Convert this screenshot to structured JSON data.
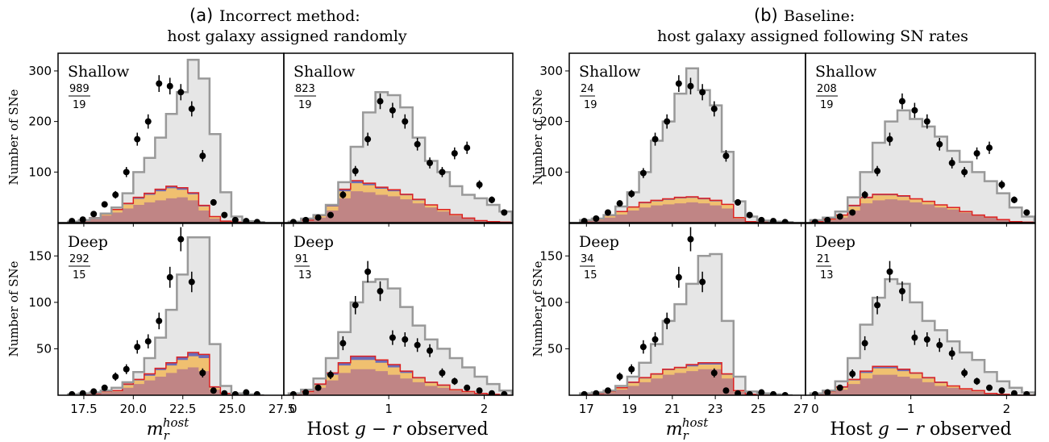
{
  "figure": {
    "groups": [
      {
        "tag": "(a)",
        "line1": "Incorrect method:",
        "line2": "host galaxy assigned randomly"
      },
      {
        "tag": "(b)",
        "line1": "Baseline:",
        "line2": "host galaxy assigned following SN rates"
      }
    ],
    "ylabel": "Number of SNe",
    "colors": {
      "model_line": "#999999",
      "model_fill": "#e6e6e6",
      "red": "#dd2222",
      "blue": "#6b6bb8",
      "orange": "#f0c070",
      "pink": "#c08585",
      "data": "#000000"
    }
  },
  "chart_data": [
    {
      "id": "a_shallow_m",
      "type": "histogram",
      "label": "Shallow",
      "frac_num": "989",
      "frac_den": "19",
      "x": [
        16.7,
        17.25,
        17.8,
        18.35,
        18.9,
        19.45,
        20.0,
        20.55,
        21.1,
        21.65,
        22.2,
        22.75,
        23.3,
        23.85,
        24.4,
        24.95,
        25.5,
        26.05
      ],
      "model": [
        2,
        5,
        9,
        18,
        30,
        58,
        100,
        128,
        168,
        215,
        258,
        322,
        285,
        175,
        60,
        12,
        3,
        1
      ],
      "stack_pink": [
        2,
        4,
        8,
        14,
        20,
        28,
        35,
        40,
        44,
        48,
        50,
        44,
        24,
        8,
        2,
        1,
        1,
        1
      ],
      "stack_orange": [
        0,
        1,
        2,
        3,
        5,
        8,
        12,
        15,
        18,
        20,
        15,
        12,
        8,
        3,
        1,
        0,
        0,
        0
      ],
      "stack_blue": [
        0,
        0,
        0,
        0,
        1,
        2,
        3,
        3,
        4,
        4,
        4,
        3,
        2,
        1,
        0,
        0,
        0,
        0
      ],
      "points_x": [
        16.9,
        17.45,
        18.0,
        18.55,
        19.1,
        19.65,
        20.2,
        20.75,
        21.3,
        21.85,
        22.4,
        22.95,
        23.5,
        24.05,
        24.6,
        25.15,
        25.7,
        26.25
      ],
      "points_y": [
        3,
        6,
        17,
        36,
        55,
        100,
        165,
        200,
        275,
        270,
        258,
        225,
        132,
        40,
        15,
        5,
        3,
        1
      ],
      "xlim": [
        16.2,
        27.6
      ],
      "ylim": [
        0,
        335
      ],
      "xticks": [
        17.5,
        20.0,
        22.5,
        25.0,
        27.5
      ],
      "xticklabels": [
        "17.5",
        "20.0",
        "22.5",
        "25.0",
        "27.5"
      ],
      "yticks": [
        100,
        200,
        300
      ]
    },
    {
      "id": "a_shallow_gr",
      "type": "histogram",
      "label": "Shallow",
      "frac_num": "823",
      "frac_den": "19",
      "x": [
        -0.05,
        0.08,
        0.21,
        0.34,
        0.47,
        0.6,
        0.73,
        0.86,
        0.99,
        1.12,
        1.25,
        1.38,
        1.51,
        1.64,
        1.77,
        1.9,
        2.03,
        2.16
      ],
      "model": [
        2,
        8,
        15,
        35,
        80,
        150,
        218,
        258,
        252,
        228,
        168,
        122,
        100,
        72,
        55,
        48,
        35,
        22
      ],
      "stack_pink": [
        1,
        4,
        10,
        24,
        48,
        62,
        60,
        55,
        52,
        46,
        38,
        30,
        22,
        14,
        8,
        4,
        2,
        1
      ],
      "stack_orange": [
        0,
        1,
        3,
        8,
        14,
        16,
        14,
        12,
        10,
        8,
        6,
        4,
        3,
        2,
        1,
        0,
        0,
        0
      ],
      "stack_blue": [
        0,
        0,
        1,
        2,
        4,
        5,
        4,
        3,
        3,
        2,
        2,
        1,
        1,
        0,
        0,
        0,
        0,
        0
      ],
      "points_x": [
        0.0,
        0.13,
        0.26,
        0.39,
        0.52,
        0.65,
        0.78,
        0.91,
        1.04,
        1.17,
        1.3,
        1.43,
        1.56,
        1.69,
        1.82,
        1.95,
        2.08,
        2.21
      ],
      "points_y": [
        1,
        5,
        10,
        15,
        55,
        102,
        165,
        240,
        222,
        200,
        155,
        118,
        100,
        137,
        148,
        75,
        45,
        20
      ],
      "xlim": [
        -0.1,
        2.3
      ],
      "ylim": [
        0,
        335
      ],
      "xticks": [
        0,
        1,
        2
      ],
      "xticklabels": [
        "0",
        "1",
        "2"
      ],
      "yticks": [
        100,
        200,
        300
      ]
    },
    {
      "id": "b_shallow_m",
      "type": "histogram",
      "label": "Shallow",
      "frac_num": "24",
      "frac_den": "19",
      "x": [
        16.7,
        17.25,
        17.8,
        18.35,
        18.9,
        19.45,
        20.0,
        20.55,
        21.1,
        21.65,
        22.2,
        22.75,
        23.3,
        23.85,
        24.4,
        24.95,
        25.5,
        26.05
      ],
      "model": [
        5,
        8,
        15,
        32,
        60,
        100,
        162,
        200,
        255,
        305,
        262,
        232,
        140,
        42,
        12,
        4,
        2,
        1
      ],
      "stack_pink": [
        3,
        5,
        10,
        16,
        24,
        30,
        34,
        36,
        38,
        40,
        38,
        34,
        28,
        8,
        2,
        1,
        1,
        1
      ],
      "stack_orange": [
        1,
        2,
        3,
        5,
        6,
        8,
        8,
        9,
        10,
        9,
        8,
        8,
        7,
        2,
        0,
        0,
        0,
        0
      ],
      "stack_blue": [
        0,
        0,
        1,
        1,
        1,
        2,
        2,
        2,
        2,
        2,
        2,
        2,
        1,
        0,
        0,
        0,
        0,
        0
      ],
      "points_x": [
        16.9,
        17.45,
        18.0,
        18.55,
        19.1,
        19.65,
        20.2,
        20.75,
        21.3,
        21.85,
        22.4,
        22.95,
        23.5,
        24.05,
        24.6,
        25.15,
        25.7,
        26.25
      ],
      "points_y": [
        3,
        8,
        20,
        38,
        57,
        98,
        165,
        200,
        275,
        270,
        258,
        225,
        132,
        40,
        15,
        5,
        3,
        1
      ],
      "xlim": [
        16.2,
        27.2
      ],
      "ylim": [
        0,
        335
      ],
      "xticks": [
        17,
        19,
        21,
        23,
        25,
        27
      ],
      "xticklabels": [
        "17",
        "19",
        "21",
        "23",
        "25",
        "27"
      ],
      "yticks": [
        100,
        200,
        300
      ]
    },
    {
      "id": "b_shallow_gr",
      "type": "histogram",
      "label": "Shallow",
      "frac_num": "208",
      "frac_den": "19",
      "x": [
        -0.05,
        0.08,
        0.21,
        0.34,
        0.47,
        0.6,
        0.73,
        0.86,
        0.99,
        1.12,
        1.25,
        1.38,
        1.51,
        1.64,
        1.77,
        1.9,
        2.03,
        2.16
      ],
      "model": [
        5,
        10,
        22,
        50,
        100,
        158,
        200,
        222,
        205,
        190,
        170,
        142,
        120,
        100,
        82,
        58,
        30,
        12
      ],
      "stack_pink": [
        2,
        5,
        10,
        24,
        38,
        44,
        46,
        44,
        40,
        36,
        30,
        26,
        20,
        14,
        10,
        6,
        2,
        1
      ],
      "stack_orange": [
        0,
        2,
        4,
        8,
        10,
        10,
        8,
        7,
        6,
        5,
        4,
        3,
        2,
        1,
        1,
        0,
        0,
        0
      ],
      "stack_blue": [
        0,
        0,
        1,
        2,
        2,
        2,
        2,
        2,
        1,
        1,
        1,
        1,
        0,
        0,
        0,
        0,
        0,
        0
      ],
      "points_x": [
        0.0,
        0.13,
        0.26,
        0.39,
        0.52,
        0.65,
        0.78,
        0.91,
        1.04,
        1.17,
        1.3,
        1.43,
        1.56,
        1.69,
        1.82,
        1.95,
        2.08,
        2.21
      ],
      "points_y": [
        1,
        5,
        12,
        20,
        55,
        102,
        165,
        240,
        222,
        200,
        155,
        118,
        100,
        137,
        148,
        75,
        45,
        20
      ],
      "xlim": [
        -0.1,
        2.3
      ],
      "ylim": [
        0,
        335
      ],
      "xticks": [
        0,
        1,
        2
      ],
      "xticklabels": [
        "0",
        "1",
        "2"
      ],
      "yticks": [
        100,
        200,
        300
      ]
    },
    {
      "id": "a_deep_m",
      "type": "histogram",
      "label": "Deep",
      "frac_num": "292",
      "frac_den": "15",
      "x": [
        16.7,
        17.25,
        17.8,
        18.35,
        18.9,
        19.45,
        20.0,
        20.55,
        21.1,
        21.65,
        22.2,
        22.75,
        23.3,
        23.85,
        24.4,
        24.95,
        25.5,
        26.05
      ],
      "model": [
        1,
        2,
        3,
        5,
        8,
        14,
        25,
        40,
        62,
        92,
        130,
        170,
        170,
        55,
        10,
        2,
        1,
        0
      ],
      "stack_pink": [
        0,
        1,
        2,
        3,
        4,
        8,
        12,
        16,
        20,
        24,
        28,
        30,
        26,
        6,
        2,
        0,
        0,
        0
      ],
      "stack_orange": [
        0,
        0,
        0,
        1,
        1,
        3,
        4,
        5,
        7,
        8,
        10,
        12,
        14,
        2,
        0,
        0,
        0,
        0
      ],
      "stack_blue": [
        0,
        0,
        0,
        0,
        0,
        1,
        1,
        2,
        2,
        3,
        3,
        4,
        4,
        1,
        0,
        0,
        0,
        0
      ],
      "points_x": [
        16.9,
        17.45,
        18.0,
        18.55,
        19.1,
        19.65,
        20.2,
        20.75,
        21.3,
        21.85,
        22.4,
        22.95,
        23.5,
        24.05,
        24.6,
        25.15,
        25.7,
        26.25
      ],
      "points_y": [
        1,
        2,
        4,
        8,
        20,
        28,
        52,
        58,
        80,
        127,
        168,
        122,
        24,
        5,
        2,
        1,
        3,
        1
      ],
      "xlim": [
        16.2,
        27.6
      ],
      "ylim": [
        0,
        185
      ],
      "xticks": [
        17.5,
        20.0,
        22.5,
        25.0,
        27.5
      ],
      "xticklabels": [
        "17.5",
        "20.0",
        "22.5",
        "25.0",
        "27.5"
      ],
      "yticks": [
        50,
        100,
        150
      ]
    },
    {
      "id": "a_deep_gr",
      "type": "histogram",
      "label": "Deep",
      "frac_num": "91",
      "frac_den": "13",
      "x": [
        -0.05,
        0.08,
        0.21,
        0.34,
        0.47,
        0.6,
        0.73,
        0.86,
        0.99,
        1.12,
        1.25,
        1.38,
        1.51,
        1.64,
        1.77,
        1.9,
        2.03,
        2.16
      ],
      "model": [
        2,
        6,
        18,
        40,
        68,
        100,
        122,
        125,
        115,
        95,
        75,
        60,
        50,
        40,
        30,
        20,
        12,
        5
      ],
      "stack_pink": [
        1,
        3,
        8,
        16,
        24,
        28,
        28,
        26,
        22,
        18,
        14,
        10,
        8,
        5,
        3,
        2,
        1,
        0
      ],
      "stack_orange": [
        0,
        1,
        3,
        6,
        8,
        10,
        10,
        9,
        8,
        6,
        4,
        3,
        2,
        1,
        1,
        0,
        0,
        0
      ],
      "stack_blue": [
        0,
        0,
        1,
        2,
        3,
        4,
        4,
        3,
        3,
        2,
        1,
        1,
        1,
        0,
        0,
        0,
        0,
        0
      ],
      "points_x": [
        0.0,
        0.13,
        0.26,
        0.39,
        0.52,
        0.65,
        0.78,
        0.91,
        1.04,
        1.17,
        1.3,
        1.43,
        1.56,
        1.69,
        1.82,
        1.95,
        2.08,
        2.21
      ],
      "points_y": [
        1,
        3,
        8,
        22,
        56,
        97,
        133,
        112,
        62,
        60,
        54,
        48,
        24,
        15,
        8,
        5,
        2,
        1
      ],
      "xlim": [
        -0.1,
        2.3
      ],
      "ylim": [
        0,
        185
      ],
      "xticks": [
        0,
        1,
        2
      ],
      "xticklabels": [
        "0",
        "1",
        "2"
      ],
      "yticks": [
        50,
        100,
        150
      ]
    },
    {
      "id": "b_deep_m",
      "type": "histogram",
      "label": "Deep",
      "frac_num": "34",
      "frac_den": "15",
      "x": [
        16.7,
        17.25,
        17.8,
        18.35,
        18.9,
        19.45,
        20.0,
        20.55,
        21.1,
        21.65,
        22.2,
        22.75,
        23.3,
        23.85,
        24.4,
        24.95,
        25.5,
        26.05
      ],
      "model": [
        2,
        3,
        5,
        10,
        20,
        35,
        55,
        80,
        98,
        120,
        150,
        152,
        80,
        20,
        4,
        2,
        1,
        0
      ],
      "stack_pink": [
        1,
        2,
        3,
        6,
        10,
        14,
        18,
        22,
        24,
        26,
        28,
        28,
        18,
        4,
        1,
        0,
        0,
        0
      ],
      "stack_orange": [
        0,
        0,
        1,
        2,
        3,
        4,
        4,
        5,
        5,
        5,
        5,
        5,
        4,
        1,
        0,
        0,
        0,
        0
      ],
      "stack_blue": [
        0,
        0,
        0,
        0,
        1,
        1,
        1,
        1,
        1,
        2,
        2,
        2,
        1,
        0,
        0,
        0,
        0,
        0
      ],
      "points_x": [
        16.9,
        17.45,
        18.0,
        18.55,
        19.1,
        19.65,
        20.2,
        20.75,
        21.3,
        21.85,
        22.4,
        22.95,
        23.5,
        24.05,
        24.6,
        25.15,
        25.7,
        26.25
      ],
      "points_y": [
        1,
        2,
        5,
        20,
        28,
        52,
        60,
        80,
        127,
        168,
        122,
        24,
        5,
        2,
        1,
        3,
        1,
        0
      ],
      "xlim": [
        16.2,
        27.2
      ],
      "ylim": [
        0,
        185
      ],
      "xticks": [
        17,
        19,
        21,
        23,
        25,
        27
      ],
      "xticklabels": [
        "17",
        "19",
        "21",
        "23",
        "25",
        "27"
      ],
      "yticks": [
        50,
        100,
        150
      ]
    },
    {
      "id": "b_deep_gr",
      "type": "histogram",
      "label": "Deep",
      "frac_num": "21",
      "frac_den": "13",
      "x": [
        -0.05,
        0.08,
        0.21,
        0.34,
        0.47,
        0.6,
        0.73,
        0.86,
        0.99,
        1.12,
        1.25,
        1.38,
        1.51,
        1.64,
        1.77,
        1.9,
        2.03,
        2.16
      ],
      "model": [
        2,
        5,
        15,
        40,
        76,
        105,
        125,
        120,
        100,
        80,
        70,
        58,
        46,
        38,
        25,
        15,
        8,
        3
      ],
      "stack_pink": [
        1,
        3,
        6,
        12,
        18,
        22,
        22,
        20,
        18,
        14,
        10,
        8,
        6,
        4,
        2,
        1,
        0,
        0
      ],
      "stack_orange": [
        0,
        1,
        2,
        4,
        6,
        7,
        7,
        6,
        5,
        4,
        3,
        2,
        1,
        1,
        0,
        0,
        0,
        0
      ],
      "stack_blue": [
        0,
        0,
        1,
        1,
        2,
        2,
        2,
        2,
        1,
        1,
        1,
        0,
        0,
        0,
        0,
        0,
        0,
        0
      ],
      "points_x": [
        0.0,
        0.13,
        0.26,
        0.39,
        0.52,
        0.65,
        0.78,
        0.91,
        1.04,
        1.17,
        1.3,
        1.43,
        1.56,
        1.69,
        1.82,
        1.95,
        2.08,
        2.21
      ],
      "points_y": [
        1,
        3,
        8,
        23,
        56,
        97,
        133,
        112,
        62,
        60,
        54,
        45,
        24,
        15,
        8,
        5,
        2,
        1
      ],
      "xlim": [
        -0.1,
        2.3
      ],
      "ylim": [
        0,
        185
      ],
      "xticks": [
        0,
        1,
        2
      ],
      "xticklabels": [
        "0",
        "1",
        "2"
      ],
      "yticks": [
        50,
        100,
        150
      ]
    }
  ],
  "xlabels": {
    "mr": "m",
    "mr_sub": "r",
    "mr_sup": "host",
    "gr_pre": "Host ",
    "gr_math": "g − r",
    "gr_post": " observed"
  }
}
